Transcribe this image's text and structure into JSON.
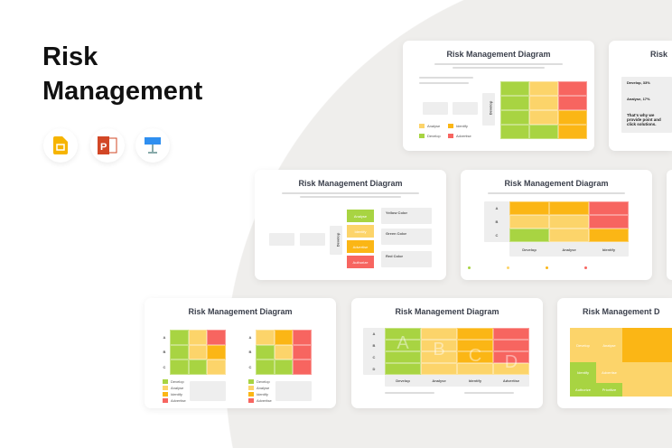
{
  "hero": {
    "line1": "Risk",
    "line2": "Management"
  },
  "apps": [
    {
      "name": "google-slides-icon"
    },
    {
      "name": "powerpoint-icon"
    },
    {
      "name": "keynote-icon"
    }
  ],
  "colors": {
    "G": "#a8d442",
    "Y": "#fcd46a",
    "O": "#fbb615",
    "R": "#f76560"
  },
  "slide_title": "Risk Management Diagram",
  "legend": {
    "develop": "Develop",
    "analyse": "Analyse",
    "identify": "Identify",
    "advertise": "Advertise"
  },
  "s1": {
    "vertical": "Develop",
    "grid": [
      "GYR",
      "GYR",
      "GYO",
      "GGO"
    ]
  },
  "s2": {
    "title": "Risk",
    "items": [
      "Develop, 33%",
      "Analyse, 17%"
    ],
    "tagline": "That's why we provide point and click solutions."
  },
  "s3": {
    "vertical": "Develop",
    "boxes": [
      "Analyse",
      "Identify",
      "Advertise",
      "Authorize"
    ],
    "notes": [
      "Yellow Color",
      "Green Color",
      "Red Color"
    ]
  },
  "s4": {
    "rows": [
      "A",
      "B",
      "C"
    ],
    "cols": [
      "Develop",
      "Analyse",
      "Identify"
    ],
    "grid": [
      "OOR",
      "YYR",
      "GYO"
    ]
  },
  "s6": {
    "rows": [
      "A",
      "B",
      "C"
    ],
    "gridL": [
      "GYR",
      "GYO",
      "GGY"
    ],
    "gridR": [
      "YOR",
      "GYR",
      "GGR"
    ]
  },
  "s7": {
    "rows": [
      "A",
      "B",
      "C",
      "D"
    ],
    "cols": [
      "Develop",
      "Analyse",
      "Identify",
      "Advertise"
    ],
    "grid": [
      "GYOR",
      "GYOR",
      "GYOR",
      "GYYY"
    ],
    "letters": [
      "A",
      "B",
      "C",
      "D"
    ]
  },
  "s8": {
    "title": "Risk Management D",
    "cells": [
      "Develop",
      "Analyse",
      "Identify",
      "Advertise",
      "Authorize",
      "Prioritize"
    ]
  }
}
